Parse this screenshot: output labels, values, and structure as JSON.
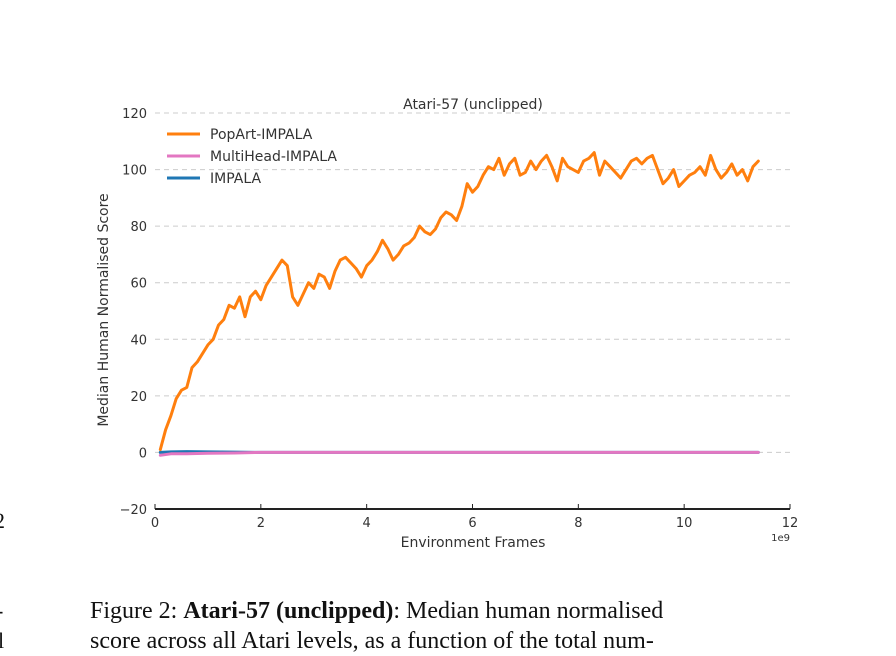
{
  "caption": {
    "prefix": "Figure 2: ",
    "bold": "Atari-57 (unclipped)",
    "text": ": Median human normalised",
    "line2": "score across all Atari levels, as a function of the total num-"
  },
  "margin_fragments": [
    "2",
    "-",
    "l"
  ],
  "chart_data": {
    "type": "line",
    "title": "Atari-57 (unclipped)",
    "xlabel": "Environment Frames",
    "ylabel": "Median Human Normalised Score",
    "x_offset_label": "1e9",
    "xlim": [
      0,
      12
    ],
    "ylim": [
      -20,
      120
    ],
    "xticks": [
      0,
      2,
      4,
      6,
      8,
      10,
      12
    ],
    "yticks": [
      -20,
      0,
      20,
      40,
      60,
      80,
      100,
      120
    ],
    "xtick_labels": [
      "0",
      "2",
      "4",
      "6",
      "8",
      "10",
      "12"
    ],
    "ytick_labels": [
      "−20",
      "0",
      "20",
      "40",
      "60",
      "80",
      "100",
      "120"
    ],
    "grid": "horizontal-dashed",
    "legend": "top-left",
    "series": [
      {
        "name": "PopArt-IMPALA",
        "color": "#ff7f0e",
        "x": [
          0.1,
          0.2,
          0.3,
          0.4,
          0.5,
          0.6,
          0.7,
          0.8,
          0.9,
          1.0,
          1.1,
          1.2,
          1.3,
          1.4,
          1.5,
          1.6,
          1.7,
          1.8,
          1.9,
          2.0,
          2.1,
          2.2,
          2.3,
          2.4,
          2.5,
          2.6,
          2.7,
          2.8,
          2.9,
          3.0,
          3.1,
          3.2,
          3.3,
          3.4,
          3.5,
          3.6,
          3.7,
          3.8,
          3.9,
          4.0,
          4.1,
          4.2,
          4.3,
          4.4,
          4.5,
          4.6,
          4.7,
          4.8,
          4.9,
          5.0,
          5.1,
          5.2,
          5.3,
          5.4,
          5.5,
          5.6,
          5.7,
          5.8,
          5.9,
          6.0,
          6.1,
          6.2,
          6.3,
          6.4,
          6.5,
          6.6,
          6.7,
          6.8,
          6.9,
          7.0,
          7.1,
          7.2,
          7.3,
          7.4,
          7.5,
          7.6,
          7.7,
          7.8,
          7.9,
          8.0,
          8.1,
          8.2,
          8.3,
          8.4,
          8.5,
          8.6,
          8.7,
          8.8,
          8.9,
          9.0,
          9.1,
          9.2,
          9.3,
          9.4,
          9.5,
          9.6,
          9.7,
          9.8,
          9.9,
          10.0,
          10.1,
          10.2,
          10.3,
          10.4,
          10.5,
          10.6,
          10.7,
          10.8,
          10.9,
          11.0,
          11.1,
          11.2,
          11.3,
          11.4
        ],
        "values": [
          1,
          8,
          13,
          19,
          22,
          23,
          30,
          32,
          35,
          38,
          40,
          45,
          47,
          52,
          51,
          55,
          48,
          55,
          57,
          54,
          59,
          62,
          65,
          68,
          66,
          55,
          52,
          56,
          60,
          58,
          63,
          62,
          58,
          64,
          68,
          69,
          67,
          65,
          62,
          66,
          68,
          71,
          75,
          72,
          68,
          70,
          73,
          74,
          76,
          80,
          78,
          77,
          79,
          83,
          85,
          84,
          82,
          87,
          95,
          92,
          94,
          98,
          101,
          100,
          104,
          98,
          102,
          104,
          98,
          99,
          103,
          100,
          103,
          105,
          101,
          96,
          104,
          101,
          100,
          99,
          103,
          104,
          106,
          98,
          103,
          101,
          99,
          97,
          100,
          103,
          104,
          102,
          104,
          105,
          100,
          95,
          97,
          100,
          94,
          96,
          98,
          99,
          101,
          98,
          105,
          100,
          97,
          99,
          102,
          98,
          100,
          96,
          101,
          103
        ],
        "note": ""
      },
      {
        "name": "MultiHead-IMPALA",
        "color": "#e377c2",
        "x": [
          0.1,
          0.3,
          0.6,
          1.0,
          1.5,
          2.0,
          3.0,
          4.0,
          5.0,
          6.0,
          7.0,
          8.0,
          9.0,
          10.0,
          11.0,
          11.4
        ],
        "values": [
          -1,
          -0.5,
          -0.5,
          -0.3,
          -0.2,
          0,
          0,
          0,
          0,
          0,
          0,
          0,
          0,
          0,
          0,
          0
        ]
      },
      {
        "name": "IMPALA",
        "color": "#1f77b4",
        "x": [
          0.1,
          0.3,
          0.6,
          1.0,
          1.5,
          2.0,
          3.0,
          4.0,
          5.0,
          6.0,
          7.0,
          8.0,
          9.0,
          10.0,
          11.0,
          11.4
        ],
        "values": [
          0,
          0.2,
          0.3,
          0.2,
          0.1,
          0,
          0,
          0,
          0,
          0,
          0,
          0,
          0,
          0,
          0,
          0
        ]
      }
    ]
  }
}
